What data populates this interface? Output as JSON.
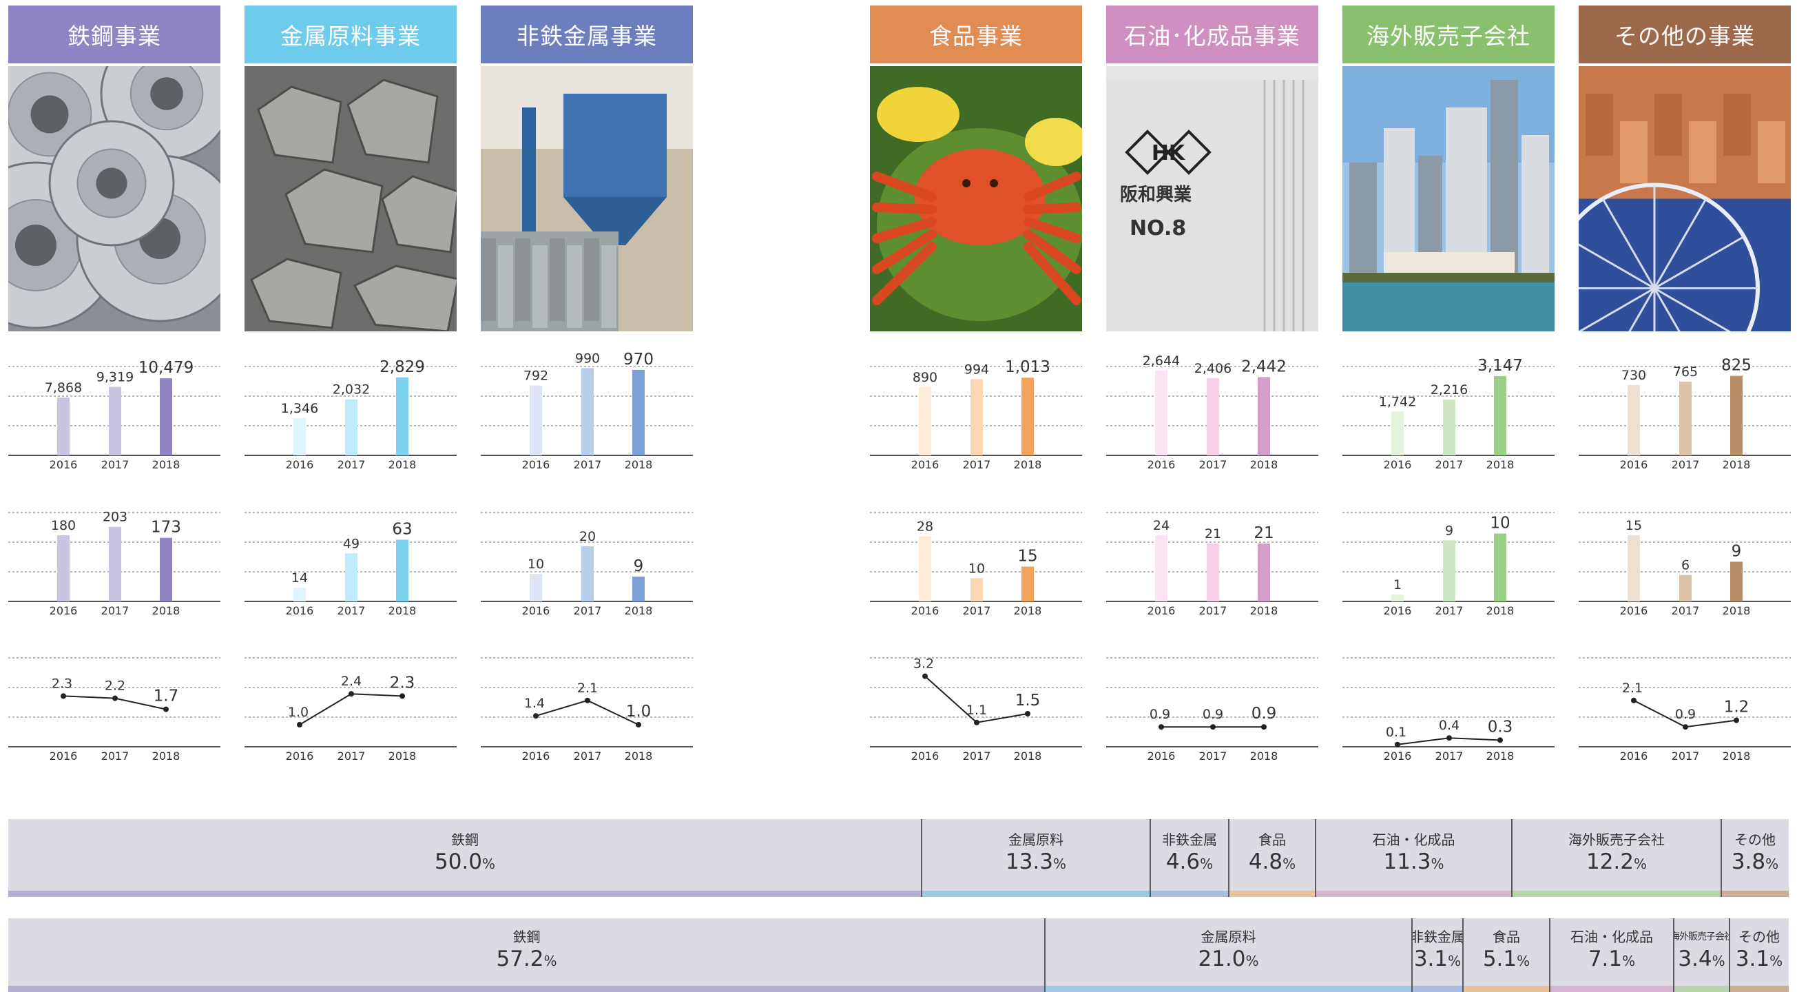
{
  "segments": [
    {
      "id": "steel",
      "name": "鉄鋼事業",
      "color": "#9283c2",
      "light": "#c9c5e0",
      "pale": "#e4e2ef",
      "revenue": {
        "years": [
          "2016",
          "2017",
          "2018"
        ],
        "values": [
          7868,
          9319,
          10479
        ],
        "labels": [
          "7,868",
          "9,319",
          "10,479"
        ],
        "ylim": [
          0,
          12000
        ]
      },
      "profit": {
        "years": [
          "2016",
          "2017",
          "2018"
        ],
        "values": [
          180,
          203,
          173
        ],
        "labels": [
          "180",
          "203",
          "173"
        ],
        "ylim": [
          0,
          240
        ]
      },
      "margin": {
        "years": [
          "2016",
          "2017",
          "2018"
        ],
        "values": [
          2.3,
          2.2,
          1.7
        ],
        "labels": [
          "2.3",
          "2.2",
          "1.7"
        ],
        "ylim": [
          0,
          4
        ]
      }
    },
    {
      "id": "metal-raw",
      "name": "金属原料事業",
      "color": "#7dd1f1",
      "light": "#c0e9f9",
      "pale": "#dff4fc",
      "revenue": {
        "years": [
          "2016",
          "2017",
          "2018"
        ],
        "values": [
          1346,
          2032,
          2829
        ],
        "labels": [
          "1,346",
          "2,032",
          "2,829"
        ],
        "ylim": [
          0,
          3200
        ]
      },
      "profit": {
        "years": [
          "2016",
          "2017",
          "2018"
        ],
        "values": [
          14,
          49,
          63
        ],
        "labels": [
          "14",
          "49",
          "63"
        ],
        "ylim": [
          0,
          90
        ]
      },
      "margin": {
        "years": [
          "2016",
          "2017",
          "2018"
        ],
        "values": [
          1.0,
          2.4,
          2.3
        ],
        "labels": [
          "1.0",
          "2.4",
          "2.3"
        ],
        "ylim": [
          0,
          4
        ]
      }
    },
    {
      "id": "non-ferrous",
      "name": "非鉄金属事業",
      "color": "#7d9fd7",
      "light": "#b9cdec",
      "pale": "#dbe5f5",
      "revenue": {
        "years": [
          "2016",
          "2017",
          "2018"
        ],
        "values": [
          792,
          990,
          970
        ],
        "labels": [
          "792",
          "990",
          "970"
        ],
        "ylim": [
          0,
          1000
        ]
      },
      "profit": {
        "years": [
          "2016",
          "2017",
          "2018"
        ],
        "values": [
          10,
          20,
          9
        ],
        "labels": [
          "10",
          "20",
          "9"
        ],
        "ylim": [
          0,
          32
        ]
      },
      "margin": {
        "years": [
          "2016",
          "2017",
          "2018"
        ],
        "values": [
          1.4,
          2.1,
          1.0
        ],
        "labels": [
          "1.4",
          "2.1",
          "1.0"
        ],
        "ylim": [
          0,
          4
        ]
      }
    },
    {
      "id": "food",
      "name": "食品事業",
      "color": "#f1a35c",
      "light": "#fad7b2",
      "pale": "#fcebd8",
      "revenue": {
        "years": [
          "2016",
          "2017",
          "2018"
        ],
        "values": [
          890,
          994,
          1013
        ],
        "labels": [
          "890",
          "994",
          "1,013"
        ],
        "ylim": [
          0,
          1150
        ]
      },
      "profit": {
        "years": [
          "2016",
          "2017",
          "2018"
        ],
        "values": [
          28,
          10,
          15
        ],
        "labels": [
          "28",
          "10",
          "15"
        ],
        "ylim": [
          0,
          38
        ]
      },
      "margin": {
        "years": [
          "2016",
          "2017",
          "2018"
        ],
        "values": [
          3.2,
          1.1,
          1.5
        ],
        "labels": [
          "3.2",
          "1.1",
          "1.5"
        ],
        "ylim": [
          0,
          4
        ]
      }
    },
    {
      "id": "petro",
      "name": "石油･化成品事業",
      "color": "#d49ccb",
      "light": "#f6cfe6",
      "pale": "#fae6f2",
      "revenue": {
        "years": [
          "2016",
          "2017",
          "2018"
        ],
        "values": [
          2644,
          2406,
          2442
        ],
        "labels": [
          "2,644",
          "2,406",
          "2,442"
        ],
        "ylim": [
          0,
          2750
        ]
      },
      "profit": {
        "years": [
          "2016",
          "2017",
          "2018"
        ],
        "values": [
          24,
          21,
          21
        ],
        "labels": [
          "24",
          "21",
          "21"
        ],
        "ylim": [
          0,
          32
        ]
      },
      "margin": {
        "years": [
          "2016",
          "2017",
          "2018"
        ],
        "values": [
          0.9,
          0.9,
          0.9
        ],
        "labels": [
          "0.9",
          "0.9",
          "0.9"
        ],
        "ylim": [
          0,
          4
        ]
      }
    },
    {
      "id": "overseas",
      "name": "海外販売子会社",
      "color": "#9bce87",
      "light": "#cde7c3",
      "pale": "#e4f2de",
      "revenue": {
        "years": [
          "2016",
          "2017",
          "2018"
        ],
        "values": [
          1742,
          2216,
          3147
        ],
        "labels": [
          "1,742",
          "2,216",
          "3,147"
        ],
        "ylim": [
          0,
          3500
        ]
      },
      "profit": {
        "years": [
          "2016",
          "2017",
          "2018"
        ],
        "values": [
          1,
          9,
          10
        ],
        "labels": [
          "1",
          "9",
          "10"
        ],
        "ylim": [
          0,
          13
        ]
      },
      "margin": {
        "years": [
          "2016",
          "2017",
          "2018"
        ],
        "values": [
          0.1,
          0.4,
          0.3
        ],
        "labels": [
          "0.1",
          "0.4",
          "0.3"
        ],
        "ylim": [
          0,
          4
        ]
      }
    },
    {
      "id": "others",
      "name": "その他の事業",
      "color": "#b98d66",
      "light": "#ddc3aa",
      "pale": "#ede1d4",
      "revenue": {
        "years": [
          "2016",
          "2017",
          "2018"
        ],
        "values": [
          730,
          765,
          825
        ],
        "labels": [
          "730",
          "765",
          "825"
        ],
        "ylim": [
          0,
          915
        ]
      },
      "profit": {
        "years": [
          "2016",
          "2017",
          "2018"
        ],
        "values": [
          15,
          6,
          9
        ],
        "labels": [
          "15",
          "6",
          "9"
        ],
        "ylim": [
          0,
          20
        ]
      },
      "margin": {
        "years": [
          "2016",
          "2017",
          "2018"
        ],
        "values": [
          2.1,
          0.9,
          1.2
        ],
        "labels": [
          "2.1",
          "0.9",
          "1.2"
        ],
        "ylim": [
          0,
          4
        ]
      }
    }
  ],
  "chart_data": [
    {
      "type": "bar",
      "name": "鉄鋼事業",
      "categories": [
        "2016",
        "2017",
        "2018"
      ],
      "values": [
        7868,
        9319,
        10479
      ]
    },
    {
      "type": "bar",
      "name": "鉄鋼事業",
      "categories": [
        "2016",
        "2017",
        "2018"
      ],
      "values": [
        180,
        203,
        173
      ]
    },
    {
      "type": "line",
      "name": "鉄鋼事業",
      "x": [
        "2016",
        "2017",
        "2018"
      ],
      "values": [
        2.3,
        2.2,
        1.7
      ]
    },
    {
      "type": "bar",
      "name": "金属原料事業",
      "categories": [
        "2016",
        "2017",
        "2018"
      ],
      "values": [
        1346,
        2032,
        2829
      ]
    },
    {
      "type": "bar",
      "name": "金属原料事業",
      "categories": [
        "2016",
        "2017",
        "2018"
      ],
      "values": [
        14,
        49,
        63
      ]
    },
    {
      "type": "line",
      "name": "金属原料事業",
      "x": [
        "2016",
        "2017",
        "2018"
      ],
      "values": [
        1.0,
        2.4,
        2.3
      ]
    },
    {
      "type": "bar",
      "name": "非鉄金属事業",
      "categories": [
        "2016",
        "2017",
        "2018"
      ],
      "values": [
        792,
        990,
        970
      ]
    },
    {
      "type": "bar",
      "name": "非鉄金属事業",
      "categories": [
        "2016",
        "2017",
        "2018"
      ],
      "values": [
        10,
        20,
        9
      ]
    },
    {
      "type": "line",
      "name": "非鉄金属事業",
      "x": [
        "2016",
        "2017",
        "2018"
      ],
      "values": [
        1.4,
        2.1,
        1.0
      ]
    },
    {
      "type": "bar",
      "name": "食品事業",
      "categories": [
        "2016",
        "2017",
        "2018"
      ],
      "values": [
        890,
        994,
        1013
      ]
    },
    {
      "type": "bar",
      "name": "食品事業",
      "categories": [
        "2016",
        "2017",
        "2018"
      ],
      "values": [
        28,
        10,
        15
      ]
    },
    {
      "type": "line",
      "name": "食品事業",
      "x": [
        "2016",
        "2017",
        "2018"
      ],
      "values": [
        3.2,
        1.1,
        1.5
      ]
    },
    {
      "type": "bar",
      "name": "石油･化成品事業",
      "categories": [
        "2016",
        "2017",
        "2018"
      ],
      "values": [
        2644,
        2406,
        2442
      ]
    },
    {
      "type": "bar",
      "name": "石油･化成品事業",
      "categories": [
        "2016",
        "2017",
        "2018"
      ],
      "values": [
        24,
        21,
        21
      ]
    },
    {
      "type": "line",
      "name": "石油･化成品事業",
      "x": [
        "2016",
        "2017",
        "2018"
      ],
      "values": [
        0.9,
        0.9,
        0.9
      ]
    },
    {
      "type": "bar",
      "name": "海外販売子会社",
      "categories": [
        "2016",
        "2017",
        "2018"
      ],
      "values": [
        1742,
        2216,
        3147
      ]
    },
    {
      "type": "bar",
      "name": "海外販売子会社",
      "categories": [
        "2016",
        "2017",
        "2018"
      ],
      "values": [
        1,
        9,
        10
      ]
    },
    {
      "type": "line",
      "name": "海外販売子会社",
      "x": [
        "2016",
        "2017",
        "2018"
      ],
      "values": [
        0.1,
        0.4,
        0.3
      ]
    },
    {
      "type": "bar",
      "name": "その他の事業",
      "categories": [
        "2016",
        "2017",
        "2018"
      ],
      "values": [
        730,
        765,
        825
      ]
    },
    {
      "type": "bar",
      "name": "その他の事業",
      "categories": [
        "2016",
        "2017",
        "2018"
      ],
      "values": [
        15,
        6,
        9
      ]
    },
    {
      "type": "line",
      "name": "その他の事業",
      "x": [
        "2016",
        "2017",
        "2018"
      ],
      "values": [
        2.1,
        0.9,
        1.2
      ]
    },
    {
      "type": "bar",
      "name": "share-1",
      "categories": [
        "鉄鋼",
        "金属原料",
        "非鉄金属",
        "食品",
        "石油・化成品",
        "海外販売子会社",
        "その他"
      ],
      "values": [
        50.0,
        13.3,
        4.6,
        4.8,
        11.3,
        12.2,
        3.8
      ]
    },
    {
      "type": "bar",
      "name": "share-2",
      "categories": [
        "鉄鋼",
        "金属原料",
        "非鉄金属",
        "食品",
        "石油・化成品",
        "海外販売子会社",
        "その他"
      ],
      "values": [
        57.2,
        21.0,
        3.1,
        5.1,
        7.1,
        3.4,
        3.1
      ]
    }
  ],
  "photo_texts": {
    "hk": "HK",
    "company": "阪和興業",
    "tank": "NO.8"
  },
  "shares": [
    {
      "id": "share-1",
      "items": [
        {
          "name": "鉄鋼",
          "value": 50.0,
          "label": "50.0",
          "unit": "%",
          "color": "#b4b0cf"
        },
        {
          "name": "金属原料",
          "value": 13.3,
          "label": "13.3",
          "unit": "%",
          "color": "#9fc8e6"
        },
        {
          "name": "非鉄金属",
          "value": 4.6,
          "label": "4.6",
          "unit": "%",
          "color": "#a9bde0"
        },
        {
          "name": "食品",
          "value": 4.8,
          "label": "4.8",
          "unit": "%",
          "color": "#e9c29b"
        },
        {
          "name": "石油・化成品",
          "value": 11.3,
          "label": "11.3",
          "unit": "%",
          "color": "#d5b5cf"
        },
        {
          "name": "海外販売子会社",
          "value": 12.2,
          "label": "12.2",
          "unit": "%",
          "color": "#b9d5ae"
        },
        {
          "name": "その他",
          "value": 3.8,
          "label": "3.8",
          "unit": "%",
          "color": "#c9ad95"
        }
      ]
    },
    {
      "id": "share-2",
      "items": [
        {
          "name": "鉄鋼",
          "value": 57.2,
          "label": "57.2",
          "unit": "%",
          "color": "#b4b0cf"
        },
        {
          "name": "金属原料",
          "value": 21.0,
          "label": "21.0",
          "unit": "%",
          "color": "#9fc8e6"
        },
        {
          "name": "非鉄金属",
          "value": 3.1,
          "label": "3.1",
          "unit": "%",
          "color": "#a9bde0"
        },
        {
          "name": "食品",
          "value": 5.1,
          "label": "5.1",
          "unit": "%",
          "color": "#e9c29b"
        },
        {
          "name": "石油・化成品",
          "value": 7.1,
          "label": "7.1",
          "unit": "%",
          "color": "#d5b5cf"
        },
        {
          "name": "海外販売子会社",
          "value": 3.4,
          "label": "3.4",
          "unit": "%",
          "color": "#b9d5ae"
        },
        {
          "name": "その他",
          "value": 3.1,
          "label": "3.1",
          "unit": "%",
          "color": "#c9ad95"
        }
      ]
    }
  ]
}
